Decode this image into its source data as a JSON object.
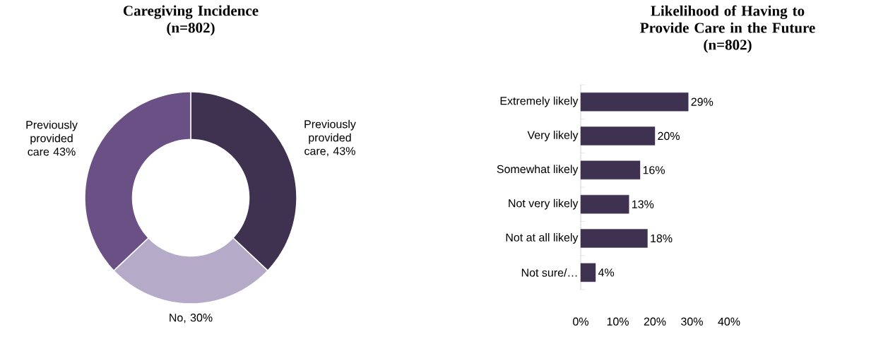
{
  "chart_data": [
    {
      "type": "donut",
      "title": "Caregiving Incidence",
      "subtitle": "(n=802)",
      "categories": [
        null,
        null,
        null
      ],
      "values": [
        43,
        30,
        43
      ],
      "value_labels": [
        "Previously provided care, 43%",
        "No, 30%",
        "Previously provided care 43%"
      ],
      "colors": [
        "#3f3250",
        "#b6aac9",
        "#6a5085"
      ]
    },
    {
      "type": "bar",
      "orientation": "horizontal",
      "title": "Likelihood of Having to Provide Care in the Future",
      "subtitle": "(n=802)",
      "categories": [
        "Extremely likely",
        "Very likely",
        "Somewhat likely",
        "Not very likely",
        "Not at all likely",
        "Not sure/…"
      ],
      "values": [
        29,
        20,
        16,
        13,
        18,
        4
      ],
      "value_labels": [
        "29%",
        "20%",
        "16%",
        "13%",
        "18%",
        "4%"
      ],
      "color": "#3f3250",
      "xlim": [
        0,
        40
      ],
      "xticks": [
        {
          "value": 0,
          "label": "0%"
        },
        {
          "value": 10,
          "label": "10%"
        },
        {
          "value": 20,
          "label": "20%"
        },
        {
          "value": 30,
          "label": "30%"
        },
        {
          "value": 40,
          "label": "40%"
        }
      ]
    }
  ]
}
